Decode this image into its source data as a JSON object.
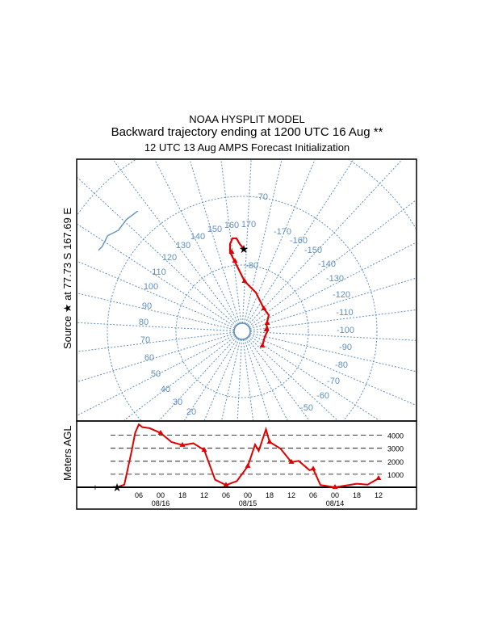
{
  "header": {
    "title": "NOAA HYSPLIT MODEL",
    "subtitle": "Backward trajectory ending at 1200 UTC 16 Aug **",
    "init": "12 UTC 13 Aug    AMPS  Forecast Initialization"
  },
  "map": {
    "source_label": "Source ★ at  77.73 S  167.69 E",
    "longitude_labels": [
      "160",
      "170",
      "150",
      "140",
      "130",
      "120",
      "110",
      "100",
      "90",
      "80",
      "70",
      "60",
      "50",
      "40",
      "30",
      "20",
      "-170",
      "-160",
      "-150",
      "-140",
      "-130",
      "-120",
      "-110",
      "-100",
      "-90",
      "-80",
      "-70",
      "-60",
      "-50"
    ],
    "latitude_labels": [
      "-70",
      "-80"
    ],
    "colors": {
      "grid": "#5f8fbf",
      "trajectory": "#e00000"
    }
  },
  "chart_data": {
    "type": "line",
    "title": "",
    "xlabel": "",
    "ylabel": "Meters AGL",
    "ylim": [
      0,
      4800
    ],
    "yticks": [
      1000,
      2000,
      3000,
      4000
    ],
    "ytick_labels": [
      "1000",
      "2000",
      "3000",
      "4000"
    ],
    "x_hours_back": [
      0,
      2,
      4,
      5,
      6,
      7,
      9,
      12,
      15,
      18,
      21,
      24,
      27,
      30,
      33,
      36,
      38,
      39,
      41,
      42,
      45,
      48,
      50,
      53,
      54,
      56,
      60,
      66,
      69,
      72
    ],
    "series": [
      {
        "name": "trajectory height",
        "values": [
          0,
          200,
          2760,
          4200,
          4830,
          4620,
          4540,
          4170,
          3480,
          3240,
          3380,
          2860,
          580,
          170,
          480,
          1620,
          3280,
          2800,
          4460,
          3480,
          2970,
          1930,
          2030,
          1310,
          1410,
          170,
          0,
          270,
          200,
          680
        ],
        "marker_hours": [
          12,
          18,
          24,
          30,
          36,
          42,
          48,
          54,
          60,
          72
        ]
      }
    ],
    "xtick_hours": [
      6,
      12,
      18,
      24,
      30,
      36,
      42,
      48,
      54,
      60,
      66,
      72
    ],
    "xtick_labels": [
      "06",
      "00",
      "18",
      "12",
      "06",
      "00",
      "18",
      "12",
      "06",
      "00",
      "18",
      "12"
    ],
    "date_labels": [
      {
        "hour": 12,
        "label": "08/16"
      },
      {
        "hour": 36,
        "label": "08/15"
      },
      {
        "hour": 60,
        "label": "08/14"
      }
    ],
    "end_time": "1200 UTC 16 Aug"
  }
}
